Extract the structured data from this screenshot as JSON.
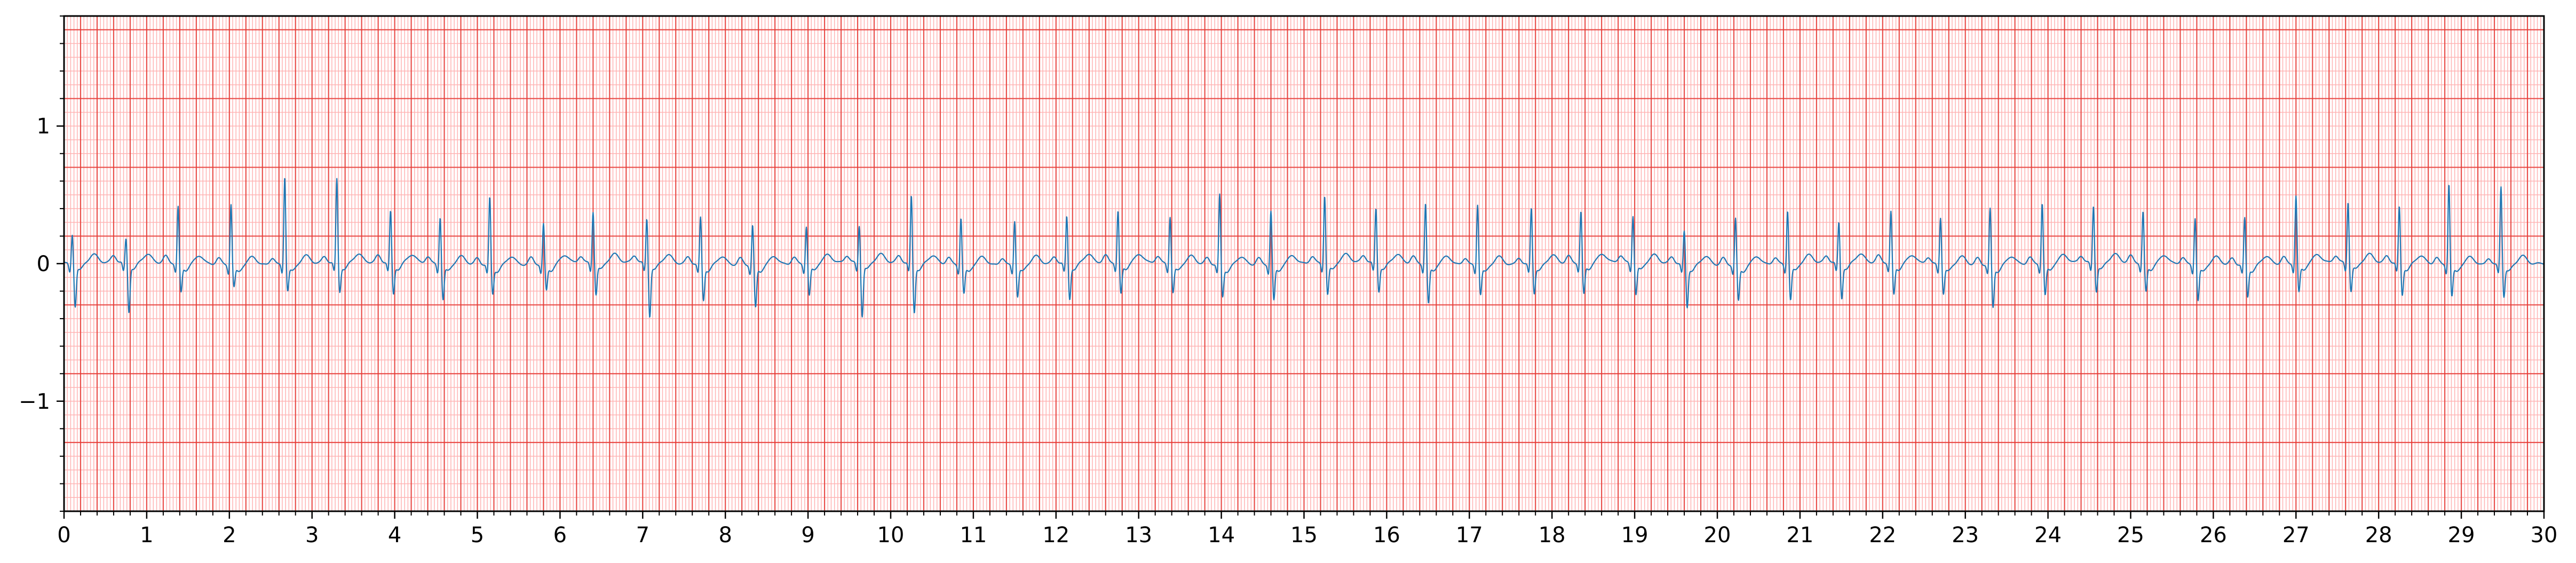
{
  "chart_data": {
    "type": "line",
    "title": "",
    "xlabel": "",
    "ylabel": "",
    "xlim": [
      0,
      30
    ],
    "ylim": [
      -1.8,
      1.8
    ],
    "x_ticks": [
      0,
      1,
      2,
      3,
      4,
      5,
      6,
      7,
      8,
      9,
      10,
      11,
      12,
      13,
      14,
      15,
      16,
      17,
      18,
      19,
      20,
      21,
      22,
      23,
      24,
      25,
      26,
      27,
      28,
      29,
      30
    ],
    "y_ticks": [
      -1,
      0,
      1
    ],
    "y_tick_labels": [
      "−1",
      "0",
      "1"
    ],
    "grid": {
      "major_x_step": 0.2,
      "major_y_step": 0.5,
      "minor_x_step": 0.04,
      "minor_y_step": 0.1,
      "major_color": "#e53935",
      "minor_color": "#ffb3b3"
    },
    "series": [
      {
        "color": "#1f77b4",
        "beat_times": [
          0.1,
          0.75,
          1.38,
          2.02,
          2.67,
          3.3,
          3.95,
          4.55,
          5.15,
          5.8,
          6.4,
          7.05,
          7.7,
          8.33,
          8.98,
          9.62,
          10.25,
          10.85,
          11.5,
          12.13,
          12.75,
          13.38,
          13.98,
          14.6,
          15.25,
          15.87,
          16.47,
          17.1,
          17.75,
          18.35,
          18.98,
          19.6,
          20.22,
          20.85,
          21.47,
          22.1,
          22.7,
          23.3,
          23.93,
          24.55,
          25.15,
          25.78,
          26.38,
          27.0,
          27.63,
          28.25,
          28.85,
          29.48
        ],
        "r_amplitudes": [
          0.22,
          0.18,
          0.42,
          0.45,
          0.65,
          0.62,
          0.38,
          0.35,
          0.5,
          0.3,
          0.38,
          0.33,
          0.35,
          0.3,
          0.28,
          0.28,
          0.5,
          0.35,
          0.33,
          0.35,
          0.38,
          0.35,
          0.52,
          0.4,
          0.5,
          0.4,
          0.45,
          0.45,
          0.42,
          0.38,
          0.35,
          0.25,
          0.35,
          0.4,
          0.3,
          0.38,
          0.35,
          0.42,
          0.45,
          0.42,
          0.38,
          0.35,
          0.35,
          0.5,
          0.45,
          0.42,
          0.6,
          0.58
        ],
        "s_depths": [
          -0.3,
          -0.35,
          -0.2,
          -0.15,
          -0.18,
          -0.2,
          -0.22,
          -0.25,
          -0.2,
          -0.18,
          -0.22,
          -0.38,
          -0.25,
          -0.3,
          -0.22,
          -0.38,
          -0.35,
          -0.2,
          -0.22,
          -0.25,
          -0.22,
          -0.2,
          -0.22,
          -0.25,
          -0.22,
          -0.2,
          -0.28,
          -0.2,
          -0.2,
          -0.22,
          -0.22,
          -0.3,
          -0.25,
          -0.25,
          -0.25,
          -0.22,
          -0.2,
          -0.3,
          -0.22,
          -0.2,
          -0.2,
          -0.25,
          -0.22,
          -0.2,
          -0.2,
          -0.22,
          -0.22,
          -0.22
        ],
        "baseline": 0.0
      }
    ]
  }
}
